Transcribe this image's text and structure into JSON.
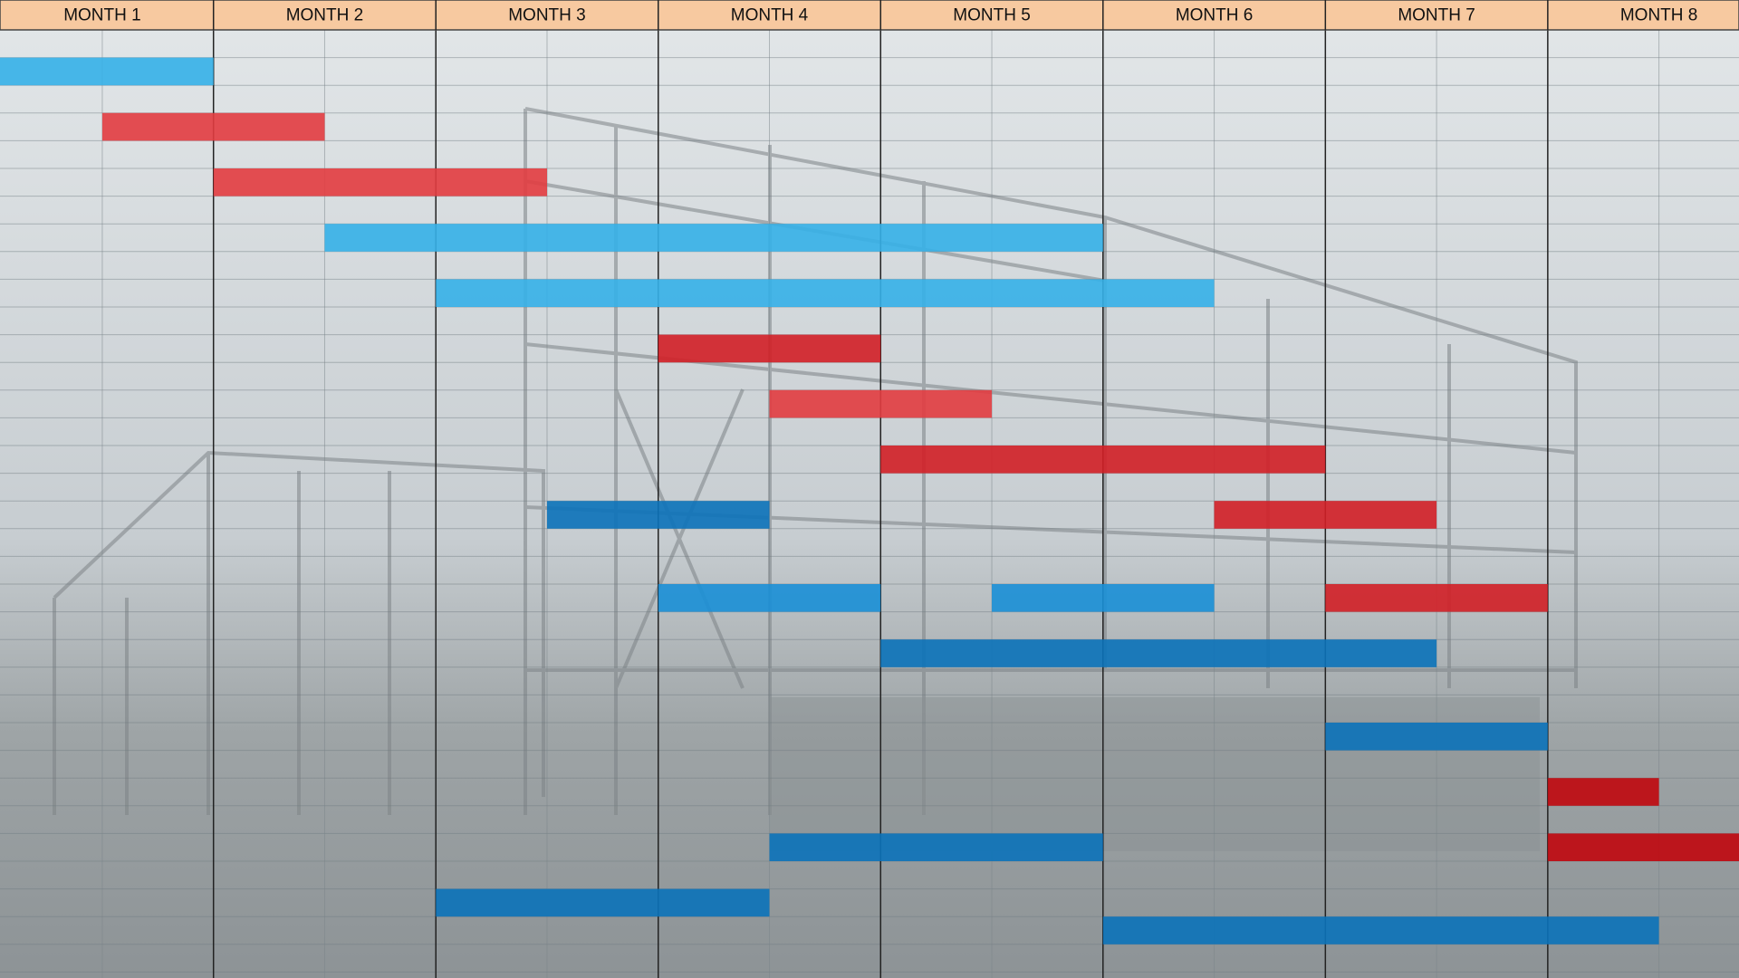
{
  "chart_data": {
    "type": "gantt",
    "categories": [
      "MONTH 1",
      "MONTH 2",
      "MONTH 3",
      "MONTH 4",
      "MONTH 5",
      "MONTH 6",
      "MONTH 7",
      "MONTH 8"
    ],
    "xlim": [
      0.04,
      7.86
    ],
    "xticks": [
      1,
      2,
      3,
      4,
      5,
      6,
      7
    ],
    "grid": true,
    "tasks": [
      {
        "start": 0,
        "end": 1,
        "color": "#35b0e8"
      },
      {
        "start": 0.5,
        "end": 1.5,
        "color": "#e23c40"
      },
      {
        "start": 1,
        "end": 2.5,
        "color": "#e23c40"
      },
      {
        "start": 1.5,
        "end": 5,
        "color": "#35b0e8"
      },
      {
        "start": 2,
        "end": 5.5,
        "color": "#35b0e8"
      },
      {
        "start": 3,
        "end": 4,
        "color": "#d21f26"
      },
      {
        "start": 3.5,
        "end": 4.5,
        "color": "#e23c40"
      },
      {
        "start": 4,
        "end": 6,
        "color": "#d21f26"
      },
      {
        "start": 2.5,
        "end": 3.5,
        "color": "#0b72b9"
      },
      {
        "start": 5.5,
        "end": 6.5,
        "color": "#d21f26"
      },
      {
        "start": 3,
        "end": 4,
        "color": "#1a8fd6"
      },
      {
        "start": 4.5,
        "end": 5.5,
        "color": "#1a8fd6"
      },
      {
        "start": 6,
        "end": 7,
        "color": "#d21f26"
      },
      {
        "start": 4,
        "end": 6.5,
        "color": "#0b72b9"
      },
      {
        "start": 6,
        "end": 7,
        "color": "#0b72b9"
      },
      {
        "start": 7,
        "end": 7.5,
        "color": "#c0070d"
      },
      {
        "start": 7,
        "end": 8,
        "color": "#c0070d"
      },
      {
        "start": 3.5,
        "end": 5,
        "color": "#0b72b9"
      },
      {
        "start": 2,
        "end": 3.5,
        "color": "#0b72b9"
      },
      {
        "start": 5,
        "end": 7.5,
        "color": "#0b72b9"
      }
    ]
  }
}
